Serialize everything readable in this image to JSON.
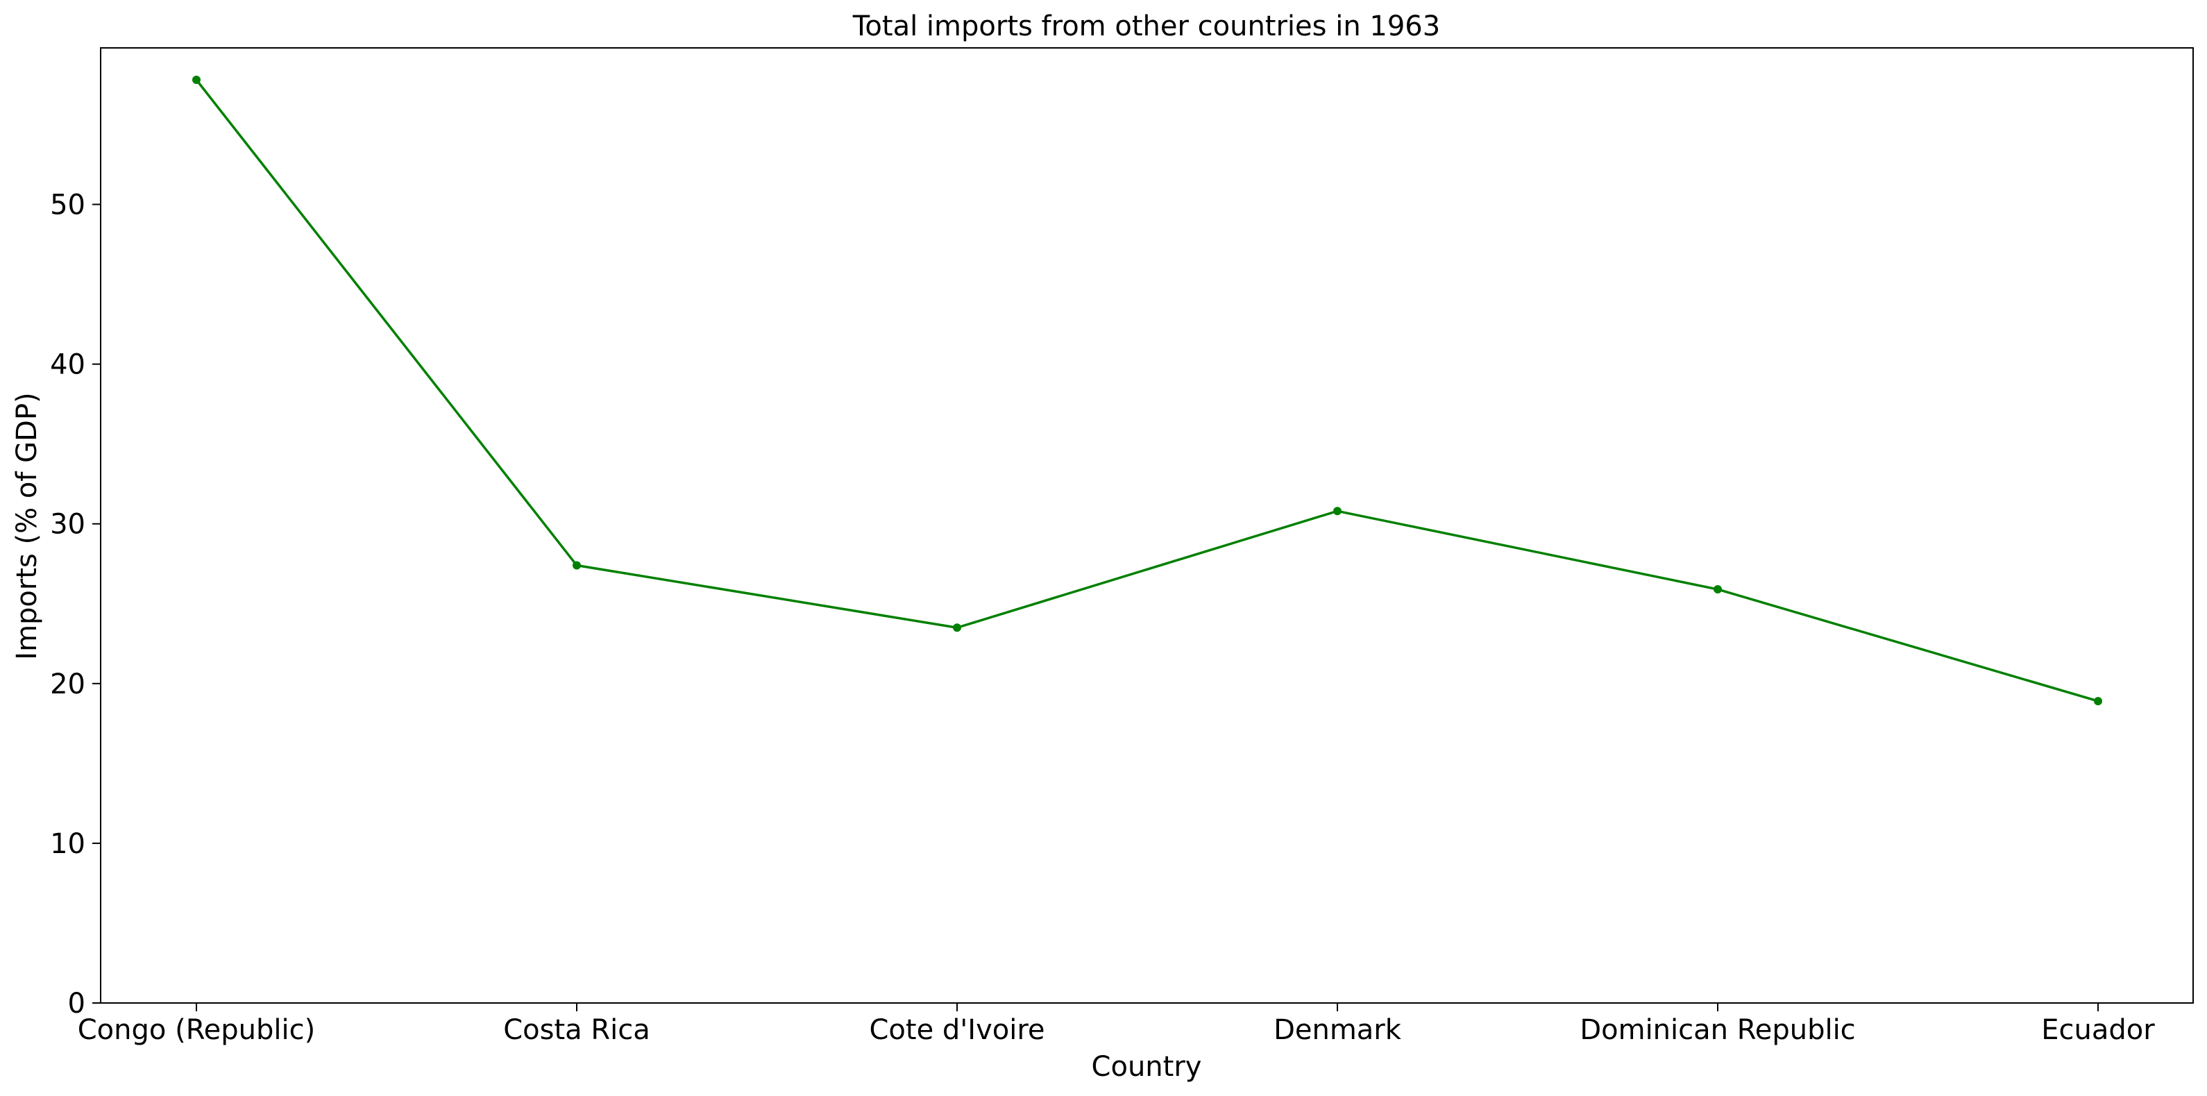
{
  "chart_data": {
    "type": "line",
    "title": "Total imports from other countries in 1963",
    "xlabel": "Country",
    "ylabel": "Imports (% of GDP)",
    "categories": [
      "Congo (Republic)",
      "Costa Rica",
      "Cote d'Ivoire",
      "Denmark",
      "Dominican Republic",
      "Ecuador"
    ],
    "series": [
      {
        "values": [
          57.8,
          27.4,
          23.5,
          30.8,
          25.9,
          18.9
        ]
      }
    ],
    "yticks": [
      0,
      10,
      20,
      30,
      40,
      50
    ],
    "ylim": [
      0,
      59.8
    ],
    "grid": false,
    "line_color": "#008000"
  }
}
